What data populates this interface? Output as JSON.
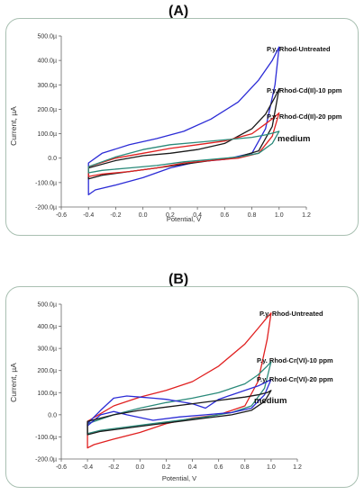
{
  "chart_data": [
    {
      "type": "line",
      "panel_label": "(A)",
      "xlabel": "Potential, V",
      "ylabel": "Current, µA",
      "xlim": [
        -0.6,
        1.2
      ],
      "ylim": [
        -200,
        500
      ],
      "x_ticks": [
        "-0.6",
        "-0.4",
        "-0.2",
        "0.0",
        "0.2",
        "0.4",
        "0.6",
        "0.8",
        "1.0",
        "1.2"
      ],
      "y_ticks": [
        "500.0µ",
        "400.0µ",
        "300.0µ",
        "200.0µ",
        "100.0µ",
        "0.0",
        "-100.0µ",
        "-200.0µ"
      ],
      "grid": false,
      "series": [
        {
          "name": "P.y. Rhod-Untreated",
          "color": "#2b2bd6",
          "points": [
            [
              -0.4,
              -20
            ],
            [
              -0.3,
              20
            ],
            [
              -0.1,
              55
            ],
            [
              0.1,
              80
            ],
            [
              0.3,
              110
            ],
            [
              0.5,
              160
            ],
            [
              0.7,
              230
            ],
            [
              0.85,
              320
            ],
            [
              0.95,
              400
            ],
            [
              1.0,
              455
            ],
            [
              0.97,
              300
            ],
            [
              0.9,
              120
            ],
            [
              0.8,
              20
            ],
            [
              0.6,
              -5
            ],
            [
              0.4,
              -15
            ],
            [
              0.2,
              -40
            ],
            [
              0.0,
              -80
            ],
            [
              -0.2,
              -110
            ],
            [
              -0.35,
              -130
            ],
            [
              -0.4,
              -150
            ]
          ]
        },
        {
          "name": "P.y. Rhod-Cd(II)-10 ppm",
          "color": "#1a1a1a",
          "points": [
            [
              -0.4,
              -40
            ],
            [
              -0.2,
              -10
            ],
            [
              0.0,
              10
            ],
            [
              0.2,
              20
            ],
            [
              0.4,
              35
            ],
            [
              0.6,
              60
            ],
            [
              0.8,
              120
            ],
            [
              0.9,
              180
            ],
            [
              0.97,
              250
            ],
            [
              1.0,
              285
            ],
            [
              0.95,
              130
            ],
            [
              0.85,
              30
            ],
            [
              0.7,
              5
            ],
            [
              0.5,
              -10
            ],
            [
              0.3,
              -25
            ],
            [
              0.1,
              -40
            ],
            [
              -0.1,
              -55
            ],
            [
              -0.3,
              -70
            ],
            [
              -0.4,
              -85
            ]
          ]
        },
        {
          "name": "P.y. Rhod-Cd(II)-20 ppm",
          "color": "#e02020",
          "points": [
            [
              -0.4,
              -35
            ],
            [
              -0.2,
              0
            ],
            [
              0.0,
              20
            ],
            [
              0.2,
              40
            ],
            [
              0.4,
              55
            ],
            [
              0.6,
              70
            ],
            [
              0.8,
              100
            ],
            [
              0.9,
              140
            ],
            [
              0.97,
              170
            ],
            [
              1.0,
              185
            ],
            [
              0.95,
              90
            ],
            [
              0.85,
              20
            ],
            [
              0.7,
              0
            ],
            [
              0.5,
              -10
            ],
            [
              0.3,
              -20
            ],
            [
              0.1,
              -40
            ],
            [
              -0.1,
              -55
            ],
            [
              -0.3,
              -65
            ],
            [
              -0.4,
              -75
            ]
          ]
        },
        {
          "name": "medium",
          "color": "#2a8a7a",
          "points": [
            [
              -0.4,
              -35
            ],
            [
              -0.2,
              5
            ],
            [
              0.0,
              35
            ],
            [
              0.2,
              55
            ],
            [
              0.4,
              65
            ],
            [
              0.6,
              75
            ],
            [
              0.8,
              85
            ],
            [
              0.9,
              95
            ],
            [
              0.97,
              105
            ],
            [
              1.0,
              110
            ],
            [
              0.95,
              60
            ],
            [
              0.85,
              20
            ],
            [
              0.7,
              5
            ],
            [
              0.5,
              -5
            ],
            [
              0.3,
              -15
            ],
            [
              0.1,
              -30
            ],
            [
              -0.1,
              -40
            ],
            [
              -0.3,
              -50
            ],
            [
              -0.4,
              -60
            ]
          ]
        }
      ]
    },
    {
      "type": "line",
      "panel_label": "(B)",
      "xlabel": "Potential, V",
      "ylabel": "Current, µA",
      "xlim": [
        -0.6,
        1.2
      ],
      "ylim": [
        -200,
        500
      ],
      "x_ticks": [
        "-0.6",
        "-0.4",
        "-0.2",
        "0.0",
        "0.2",
        "0.4",
        "0.6",
        "0.8",
        "1.0",
        "1.2"
      ],
      "y_ticks": [
        "500.0µ",
        "400.0µ",
        "300.0µ",
        "200.0µ",
        "100.0µ",
        "0.0",
        "-100.0µ",
        "-200.0µ"
      ],
      "grid": false,
      "series": [
        {
          "name": "P.y. Rhod-Untreated",
          "color": "#e02020",
          "points": [
            [
              -0.4,
              -30
            ],
            [
              -0.2,
              40
            ],
            [
              0.0,
              80
            ],
            [
              0.2,
              110
            ],
            [
              0.4,
              150
            ],
            [
              0.6,
              220
            ],
            [
              0.8,
              320
            ],
            [
              0.9,
              390
            ],
            [
              0.97,
              440
            ],
            [
              1.0,
              460
            ],
            [
              0.97,
              340
            ],
            [
              0.9,
              150
            ],
            [
              0.8,
              40
            ],
            [
              0.6,
              0
            ],
            [
              0.4,
              -15
            ],
            [
              0.2,
              -40
            ],
            [
              0.0,
              -80
            ],
            [
              -0.2,
              -110
            ],
            [
              -0.35,
              -135
            ],
            [
              -0.4,
              -150
            ]
          ]
        },
        {
          "name": "P.y. Rhod-Cr(VI)-10 ppm",
          "color": "#2a8a7a",
          "points": [
            [
              -0.4,
              -40
            ],
            [
              -0.2,
              0
            ],
            [
              0.0,
              30
            ],
            [
              0.2,
              55
            ],
            [
              0.4,
              75
            ],
            [
              0.6,
              100
            ],
            [
              0.8,
              140
            ],
            [
              0.9,
              180
            ],
            [
              0.97,
              220
            ],
            [
              1.0,
              240
            ],
            [
              0.95,
              120
            ],
            [
              0.85,
              40
            ],
            [
              0.7,
              10
            ],
            [
              0.5,
              -10
            ],
            [
              0.3,
              -25
            ],
            [
              0.1,
              -40
            ],
            [
              -0.1,
              -55
            ],
            [
              -0.3,
              -70
            ],
            [
              -0.4,
              -85
            ]
          ]
        },
        {
          "name": "P.y. Rhod-Cr(VI)-20 ppm",
          "color": "#2b2bd6",
          "points": [
            [
              -0.4,
              -40
            ],
            [
              -0.3,
              20
            ],
            [
              -0.2,
              75
            ],
            [
              -0.1,
              85
            ],
            [
              0.0,
              80
            ],
            [
              0.1,
              75
            ],
            [
              0.2,
              70
            ],
            [
              0.3,
              60
            ],
            [
              0.4,
              50
            ],
            [
              0.5,
              30
            ],
            [
              0.55,
              50
            ],
            [
              0.6,
              70
            ],
            [
              0.7,
              90
            ],
            [
              0.8,
              110
            ],
            [
              0.9,
              130
            ],
            [
              0.97,
              150
            ],
            [
              1.0,
              160
            ],
            [
              0.95,
              90
            ],
            [
              0.85,
              30
            ],
            [
              0.7,
              10
            ],
            [
              0.5,
              0
            ],
            [
              0.3,
              -10
            ],
            [
              0.1,
              -25
            ],
            [
              -0.1,
              0
            ],
            [
              -0.2,
              15
            ],
            [
              -0.3,
              0
            ],
            [
              -0.4,
              -50
            ]
          ]
        },
        {
          "name": "medium",
          "color": "#1a1a1a",
          "points": [
            [
              -0.4,
              -30
            ],
            [
              -0.2,
              0
            ],
            [
              0.0,
              20
            ],
            [
              0.2,
              35
            ],
            [
              0.4,
              50
            ],
            [
              0.6,
              65
            ],
            [
              0.8,
              80
            ],
            [
              0.9,
              90
            ],
            [
              0.97,
              100
            ],
            [
              1.0,
              110
            ],
            [
              0.95,
              60
            ],
            [
              0.85,
              20
            ],
            [
              0.7,
              0
            ],
            [
              0.5,
              -15
            ],
            [
              0.3,
              -30
            ],
            [
              0.1,
              -45
            ],
            [
              -0.1,
              -60
            ],
            [
              -0.3,
              -75
            ],
            [
              -0.4,
              -90
            ]
          ]
        }
      ]
    }
  ]
}
